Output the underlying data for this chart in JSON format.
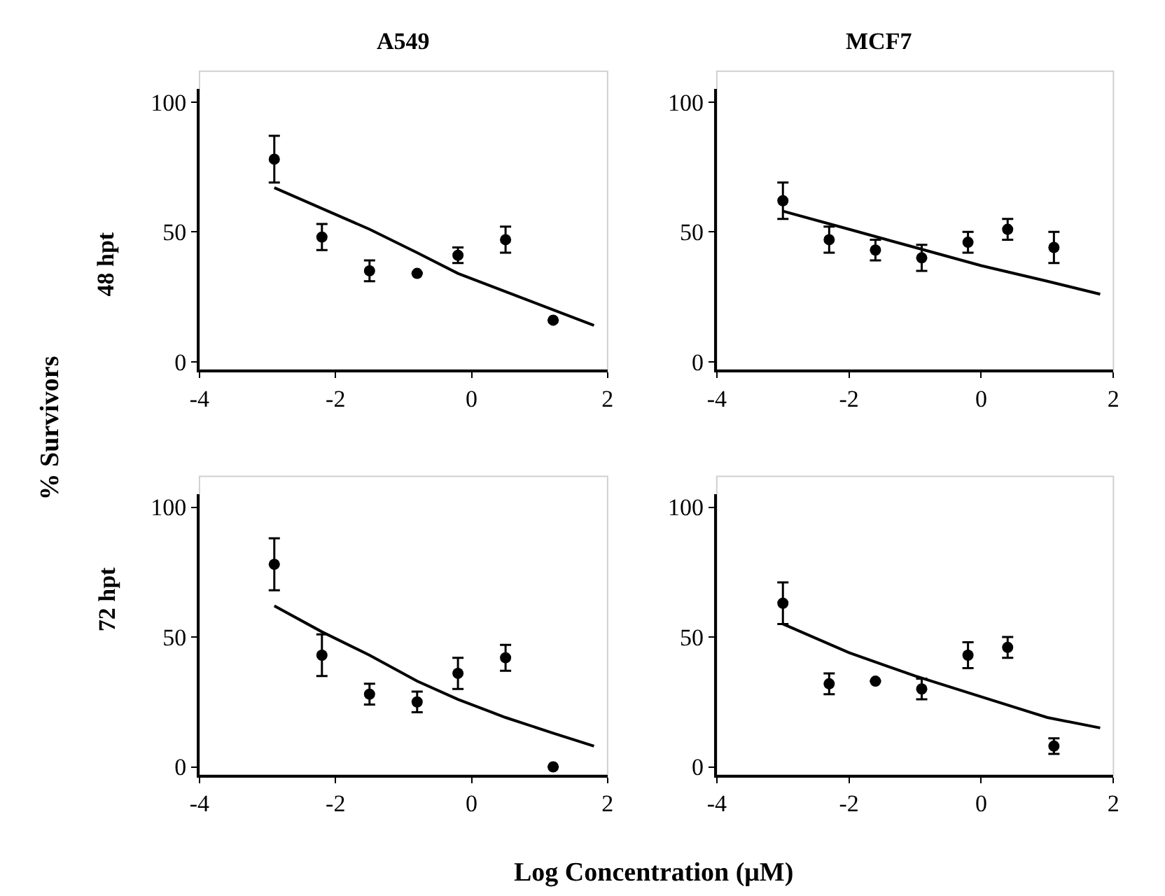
{
  "chart_data": [
    {
      "type": "scatter",
      "title": "A549",
      "ylabel": "48 hpt",
      "annotations": [
        "% Survivors",
        "Log Concentration (μM)"
      ],
      "xlim": [
        -4,
        2
      ],
      "xticks": [
        -4,
        -2,
        0,
        2
      ],
      "ylim": [
        -3,
        105
      ],
      "yticks": [
        0,
        50,
        100
      ],
      "grid": false,
      "marker": "circle",
      "series": [
        {
          "color": "#000000",
          "x": [
            -2.9,
            -2.2,
            -1.5,
            -0.8,
            -0.2,
            0.5,
            1.2
          ],
          "values": [
            78,
            48,
            35,
            34,
            41,
            47,
            16
          ],
          "errors": [
            9,
            5,
            4,
            null,
            3,
            5,
            null
          ]
        },
        {
          "type": "line",
          "color": "#000000",
          "marker": "none",
          "x": [
            -2.9,
            -2.2,
            -1.5,
            -0.8,
            -0.2,
            0.5,
            1.2,
            1.8
          ],
          "values": [
            67,
            59,
            51,
            42,
            34,
            27,
            20,
            14
          ]
        }
      ]
    },
    {
      "type": "scatter",
      "title": "MCF7",
      "xlim": [
        -4,
        2
      ],
      "xticks": [
        -4,
        -2,
        0,
        2
      ],
      "ylim": [
        -3,
        105
      ],
      "yticks": [
        0,
        50,
        100
      ],
      "grid": false,
      "marker": "circle",
      "series": [
        {
          "color": "#000000",
          "x": [
            -3.0,
            -2.3,
            -1.6,
            -0.9,
            -0.2,
            0.4,
            1.1
          ],
          "values": [
            62,
            47,
            43,
            40,
            46,
            51,
            44
          ],
          "errors": [
            7,
            5,
            4,
            5,
            4,
            4,
            6
          ]
        },
        {
          "type": "line",
          "color": "#000000",
          "marker": "none",
          "x": [
            -3.0,
            -2.0,
            -1.0,
            0.0,
            1.0,
            1.8
          ],
          "values": [
            58,
            51,
            44,
            37,
            31,
            26
          ]
        }
      ]
    },
    {
      "type": "scatter",
      "ylabel": "72 hpt",
      "xlim": [
        -4,
        2
      ],
      "xticks": [
        -4,
        -2,
        0,
        2
      ],
      "ylim": [
        -3,
        105
      ],
      "yticks": [
        0,
        50,
        100
      ],
      "grid": false,
      "marker": "circle",
      "series": [
        {
          "color": "#000000",
          "x": [
            -2.9,
            -2.2,
            -1.5,
            -0.8,
            -0.2,
            0.5,
            1.2
          ],
          "values": [
            78,
            43,
            28,
            25,
            36,
            42,
            0
          ],
          "errors": [
            10,
            8,
            4,
            4,
            6,
            5,
            null
          ]
        },
        {
          "type": "line",
          "color": "#000000",
          "marker": "none",
          "x": [
            -2.9,
            -2.2,
            -1.5,
            -0.8,
            -0.2,
            0.5,
            1.2,
            1.8
          ],
          "values": [
            62,
            52,
            43,
            33,
            26,
            19,
            13,
            8
          ]
        }
      ]
    },
    {
      "type": "scatter",
      "xlim": [
        -4,
        2
      ],
      "xticks": [
        -4,
        -2,
        0,
        2
      ],
      "ylim": [
        -3,
        105
      ],
      "yticks": [
        0,
        50,
        100
      ],
      "grid": false,
      "marker": "circle",
      "series": [
        {
          "color": "#000000",
          "x": [
            -3.0,
            -2.3,
            -1.6,
            -0.9,
            -0.2,
            0.4,
            1.1
          ],
          "values": [
            63,
            32,
            33,
            30,
            43,
            46,
            8
          ],
          "errors": [
            8,
            4,
            null,
            4,
            5,
            4,
            3
          ]
        },
        {
          "type": "line",
          "color": "#000000",
          "marker": "none",
          "x": [
            -3.0,
            -2.0,
            -1.0,
            0.0,
            1.0,
            1.8
          ],
          "values": [
            55,
            44,
            35,
            27,
            19,
            15
          ]
        }
      ]
    }
  ]
}
